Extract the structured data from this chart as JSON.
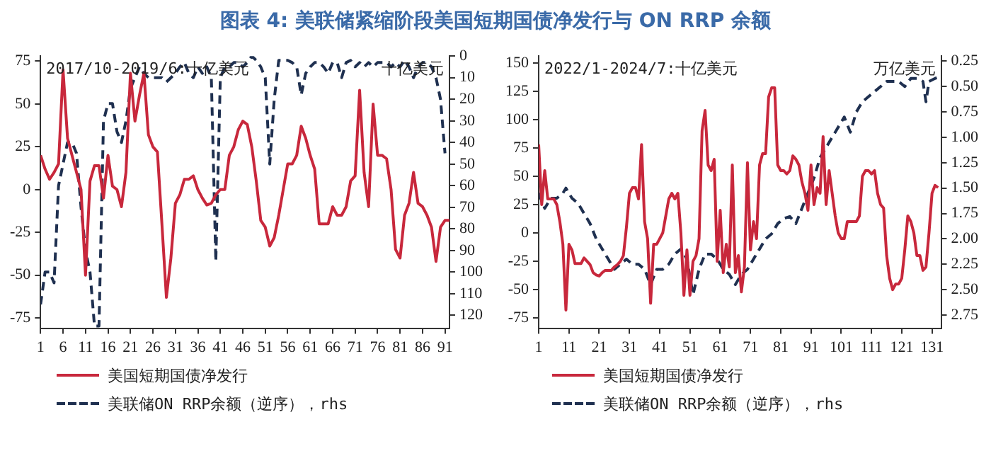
{
  "chart_data": [
    {
      "type": "line",
      "title": "图表 4:  美联储紧缩阶段美国短期国债净发行与 ON RRP 余额",
      "annotations": [
        "2017/10-2019/6:十亿美元",
        "十亿美元"
      ],
      "legend": "bottom",
      "grid": false,
      "marker": "none",
      "xlim": [
        1,
        92
      ],
      "xticks": [
        1,
        6,
        11,
        16,
        21,
        26,
        31,
        36,
        41,
        46,
        51,
        56,
        61,
        66,
        71,
        76,
        81,
        86,
        91
      ],
      "ylim": [
        -81,
        78
      ],
      "yticks": [
        -75,
        -50,
        -25,
        0,
        25,
        50,
        75
      ],
      "y2lim": [
        126,
        0
      ],
      "y2ticks": [
        0,
        10,
        20,
        30,
        40,
        50,
        60,
        70,
        80,
        90,
        100,
        110,
        120
      ],
      "series": [
        {
          "name": "美国短期国债净发行",
          "color": "#c8283c",
          "line_style": "solid",
          "x": [
            1,
            2,
            3,
            4,
            5,
            6,
            7,
            8,
            9,
            10,
            11,
            12,
            13,
            14,
            15,
            16,
            17,
            18,
            19,
            20,
            21,
            22,
            23,
            24,
            25,
            26,
            27,
            28,
            29,
            30,
            31,
            32,
            33,
            34,
            35,
            36,
            37,
            38,
            39,
            40,
            41,
            42,
            43,
            44,
            45,
            46,
            47,
            48,
            49,
            50,
            51,
            52,
            53,
            54,
            55,
            56,
            57,
            58,
            59,
            60,
            61,
            62,
            63,
            64,
            65,
            66,
            67,
            68,
            69,
            70,
            71,
            72,
            73,
            74,
            75,
            76,
            77,
            78,
            79,
            80,
            81,
            82,
            83,
            84,
            85,
            86,
            87,
            88,
            89,
            90,
            91,
            92
          ],
          "values": [
            20,
            12,
            6,
            10,
            15,
            70,
            30,
            20,
            10,
            0,
            -50,
            5,
            14,
            14,
            -5,
            20,
            2,
            0,
            -10,
            10,
            68,
            40,
            55,
            68,
            32,
            25,
            22,
            -20,
            -63,
            -40,
            -8,
            -3,
            6,
            6,
            8,
            0,
            -5,
            -9,
            -8,
            -3,
            0,
            0,
            20,
            25,
            35,
            40,
            38,
            25,
            5,
            -18,
            -22,
            -33,
            -28,
            -15,
            0,
            15,
            15,
            20,
            37,
            30,
            20,
            12,
            -20,
            -20,
            -20,
            -10,
            -15,
            -15,
            -10,
            5,
            8,
            58,
            10,
            -10,
            50,
            20,
            20,
            18,
            0,
            -35,
            -40,
            -15,
            -8,
            10,
            -8,
            -10,
            -15,
            -22,
            -42,
            -22,
            -18,
            -18
          ]
        },
        {
          "name": "美联储ON RRP余额（逆序），rhs",
          "color": "#1f3050",
          "line_style": "dashed",
          "axis": "y2",
          "x": [
            1,
            2,
            3,
            4,
            5,
            6,
            7,
            8,
            9,
            10,
            11,
            12,
            13,
            14,
            15,
            16,
            17,
            18,
            19,
            20,
            21,
            22,
            23,
            24,
            25,
            26,
            27,
            28,
            29,
            30,
            31,
            32,
            33,
            34,
            35,
            36,
            37,
            38,
            39,
            40,
            41,
            42,
            43,
            44,
            45,
            46,
            47,
            48,
            49,
            50,
            51,
            52,
            53,
            54,
            55,
            56,
            57,
            58,
            59,
            60,
            61,
            62,
            63,
            64,
            65,
            66,
            67,
            68,
            69,
            70,
            71,
            72,
            73,
            74,
            75,
            76,
            77,
            78,
            79,
            80,
            81,
            82,
            83,
            84,
            85,
            86,
            87,
            88,
            89,
            90,
            91
          ],
          "values": [
            115,
            100,
            100,
            105,
            60,
            50,
            40,
            40,
            45,
            70,
            90,
            100,
            125,
            125,
            30,
            22,
            22,
            35,
            40,
            30,
            15,
            10,
            5,
            8,
            10,
            10,
            10,
            10,
            12,
            10,
            8,
            5,
            3,
            8,
            10,
            5,
            8,
            5,
            10,
            95,
            10,
            5,
            5,
            3,
            3,
            5,
            3,
            0,
            2,
            5,
            10,
            50,
            20,
            2,
            2,
            2,
            3,
            5,
            18,
            8,
            5,
            3,
            3,
            5,
            8,
            3,
            3,
            10,
            3,
            2,
            5,
            3,
            5,
            3,
            5,
            3,
            3,
            3,
            5,
            3,
            5,
            2,
            5,
            10,
            5,
            3,
            3,
            5,
            10,
            20,
            45
          ]
        }
      ]
    },
    {
      "type": "line",
      "annotations": [
        "2022/1-2024/7:十亿美元",
        "万亿美元"
      ],
      "legend": "bottom",
      "grid": false,
      "marker": "none",
      "xlim": [
        1,
        134
      ],
      "xticks": [
        1,
        11,
        21,
        31,
        41,
        51,
        61,
        71,
        81,
        91,
        101,
        111,
        121,
        131
      ],
      "ylim": [
        -84,
        156
      ],
      "yticks": [
        -75,
        -50,
        -25,
        0,
        25,
        50,
        75,
        100,
        125,
        150
      ],
      "y2lim": [
        2.88,
        0.2
      ],
      "y2ticks": [
        {
          "value": 0.25,
          "label": "0.25"
        },
        {
          "value": 0.5,
          "label": "0.50"
        },
        {
          "value": 0.75,
          "label": "0.75"
        },
        {
          "value": 1,
          "label": "1.00"
        },
        {
          "value": 1.25,
          "label": "1.25"
        },
        {
          "value": 1.5,
          "label": "1.50"
        },
        {
          "value": 1.75,
          "label": "1.75"
        },
        {
          "value": 2,
          "label": "2.00"
        },
        {
          "value": 2.25,
          "label": "2.25"
        },
        {
          "value": 2.5,
          "label": "2.50"
        },
        {
          "value": 2.75,
          "label": "2.75"
        }
      ],
      "series": [
        {
          "name": "美国短期国债净发行",
          "color": "#c8283c",
          "line_style": "solid",
          "x": [
            1,
            2,
            3,
            4,
            5,
            6,
            7,
            8,
            9,
            10,
            11,
            12,
            13,
            14,
            15,
            16,
            17,
            18,
            19,
            20,
            21,
            22,
            23,
            24,
            25,
            26,
            27,
            28,
            29,
            30,
            31,
            32,
            33,
            34,
            35,
            36,
            37,
            38,
            39,
            40,
            41,
            42,
            43,
            44,
            45,
            46,
            47,
            48,
            49,
            50,
            51,
            52,
            53,
            54,
            55,
            56,
            57,
            58,
            59,
            60,
            61,
            62,
            63,
            64,
            65,
            66,
            67,
            68,
            69,
            70,
            71,
            72,
            73,
            74,
            75,
            76,
            77,
            78,
            79,
            80,
            81,
            82,
            83,
            84,
            85,
            86,
            87,
            88,
            89,
            90,
            91,
            92,
            93,
            94,
            95,
            96,
            97,
            98,
            99,
            100,
            101,
            102,
            103,
            104,
            105,
            106,
            107,
            108,
            109,
            110,
            111,
            112,
            113,
            114,
            115,
            116,
            117,
            118,
            119,
            120,
            121,
            122,
            123,
            124,
            125,
            126,
            127,
            128,
            129,
            130,
            131,
            132,
            133
          ],
          "values": [
            78,
            25,
            55,
            30,
            30,
            30,
            25,
            10,
            -10,
            -68,
            -10,
            -15,
            -27,
            -27,
            -27,
            -22,
            -25,
            -28,
            -35,
            -37,
            -38,
            -35,
            -33,
            -33,
            -33,
            -30,
            -28,
            -25,
            -20,
            5,
            35,
            40,
            40,
            30,
            78,
            10,
            -5,
            -62,
            -10,
            -10,
            -5,
            0,
            15,
            30,
            35,
            30,
            35,
            0,
            -55,
            -15,
            -55,
            -25,
            -20,
            -5,
            90,
            108,
            60,
            55,
            65,
            -25,
            20,
            -35,
            -10,
            -30,
            60,
            -35,
            -20,
            -52,
            -30,
            62,
            -15,
            10,
            -5,
            60,
            70,
            70,
            120,
            128,
            128,
            60,
            55,
            55,
            52,
            55,
            68,
            65,
            60,
            45,
            35,
            20,
            60,
            25,
            40,
            35,
            85,
            25,
            55,
            35,
            15,
            0,
            -5,
            -5,
            10,
            10,
            10,
            10,
            15,
            50,
            55,
            55,
            52,
            55,
            35,
            25,
            22,
            -20,
            -40,
            -50,
            -45,
            -45,
            -40,
            -15,
            15,
            10,
            0,
            -20,
            -20,
            -33,
            -30,
            0,
            35,
            42,
            40
          ]
        },
        {
          "name": "美联储ON RRP余额（逆序），rhs",
          "color": "#1f3050",
          "line_style": "dashed",
          "axis": "y2",
          "x": [
            1,
            3,
            5,
            7,
            9,
            10,
            12,
            14,
            16,
            18,
            20,
            22,
            24,
            26,
            28,
            30,
            32,
            34,
            36,
            38,
            40,
            42,
            44,
            46,
            48,
            50,
            52,
            54,
            56,
            58,
            60,
            62,
            64,
            66,
            68,
            70,
            72,
            74,
            76,
            78,
            80,
            82,
            84,
            86,
            88,
            90,
            92,
            94,
            96,
            98,
            100,
            102,
            104,
            106,
            108,
            110,
            112,
            114,
            116,
            118,
            120,
            122,
            124,
            126,
            128,
            129,
            130,
            132,
            134
          ],
          "values": [
            1.55,
            1.7,
            1.6,
            1.6,
            1.55,
            1.5,
            1.6,
            1.65,
            1.75,
            1.85,
            2.0,
            2.1,
            2.2,
            2.3,
            2.25,
            2.2,
            2.25,
            2.25,
            2.3,
            2.45,
            2.3,
            2.3,
            2.25,
            2.15,
            2.1,
            2.2,
            2.55,
            2.3,
            2.15,
            2.15,
            2.2,
            2.3,
            2.35,
            2.45,
            2.35,
            2.3,
            2.2,
            2.1,
            2.0,
            1.95,
            1.85,
            1.8,
            1.78,
            1.85,
            1.7,
            1.55,
            1.4,
            1.2,
            1.1,
            1.0,
            0.9,
            0.8,
            0.95,
            0.75,
            0.65,
            0.6,
            0.55,
            0.5,
            0.45,
            0.45,
            0.45,
            0.5,
            0.42,
            0.42,
            0.45,
            0.65,
            0.45,
            0.42,
            0.4
          ]
        }
      ]
    }
  ]
}
